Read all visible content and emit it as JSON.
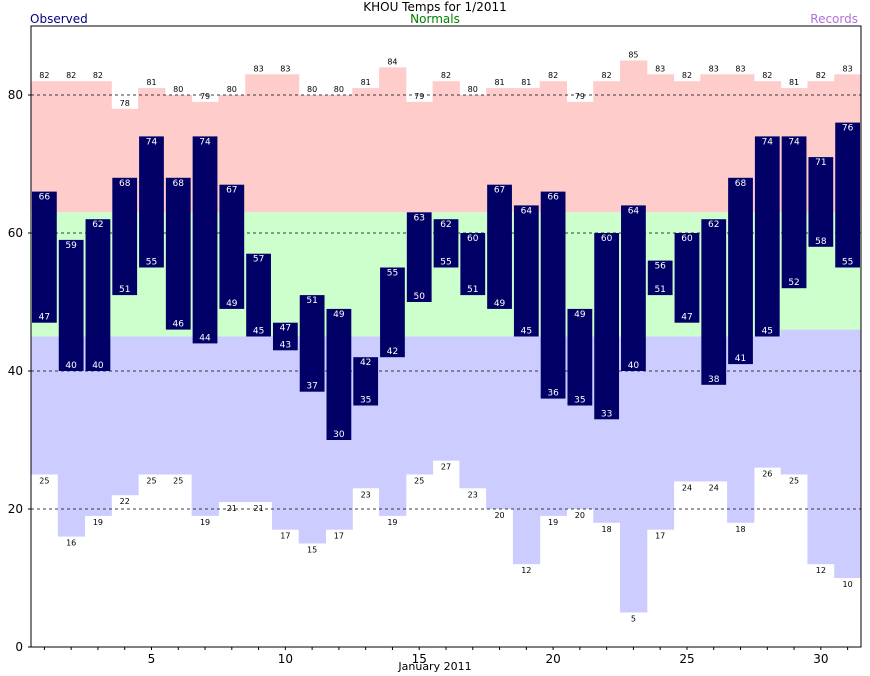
{
  "chart_data": {
    "type": "bar",
    "title": "KHOU Temps for 1/2011",
    "legend": {
      "observed": "Observed",
      "normals": "Normals",
      "records": "Records"
    },
    "xlabel": "January 2011",
    "ylim": [
      0,
      90
    ],
    "xlim": [
      0.5,
      31.5
    ],
    "yticks": [
      0,
      20,
      40,
      60,
      80
    ],
    "xticks": [
      5,
      10,
      15,
      20,
      25,
      30
    ],
    "gridlines": [
      20,
      40,
      60,
      80
    ],
    "colors": {
      "observed": "#000066",
      "normal": "#ccffcc",
      "record_high": "#ffcccc",
      "record_low": "#ccccff",
      "legend_observed": "#000080",
      "legend_normals": "#008000",
      "legend_records": "#b070d8"
    },
    "days": [
      1,
      2,
      3,
      4,
      5,
      6,
      7,
      8,
      9,
      10,
      11,
      12,
      13,
      14,
      15,
      16,
      17,
      18,
      19,
      20,
      21,
      22,
      23,
      24,
      25,
      26,
      27,
      28,
      29,
      30,
      31
    ],
    "observed_high": [
      66,
      59,
      62,
      68,
      74,
      68,
      74,
      67,
      57,
      47,
      51,
      49,
      42,
      55,
      63,
      62,
      60,
      67,
      64,
      66,
      49,
      60,
      64,
      56,
      60,
      62,
      68,
      74,
      74,
      71,
      76
    ],
    "observed_low": [
      47,
      40,
      40,
      51,
      55,
      46,
      44,
      49,
      45,
      43,
      37,
      30,
      35,
      42,
      50,
      55,
      51,
      49,
      45,
      36,
      35,
      33,
      40,
      51,
      47,
      38,
      41,
      45,
      52,
      58,
      55
    ],
    "normal_high": [
      63,
      63,
      63,
      63,
      63,
      63,
      63,
      63,
      63,
      63,
      63,
      63,
      63,
      63,
      63,
      63,
      63,
      63,
      63,
      63,
      63,
      63,
      63,
      63,
      63,
      63,
      63,
      63,
      63,
      63,
      63
    ],
    "normal_low": [
      45,
      45,
      45,
      45,
      45,
      45,
      45,
      45,
      45,
      45,
      45,
      45,
      45,
      45,
      45,
      45,
      45,
      45,
      45,
      45,
      45,
      45,
      45,
      45,
      45,
      45,
      45,
      45,
      46,
      46,
      46
    ],
    "record_high": [
      82,
      82,
      82,
      78,
      81,
      80,
      79,
      80,
      83,
      83,
      80,
      80,
      81,
      84,
      79,
      82,
      80,
      81,
      81,
      82,
      79,
      82,
      85,
      83,
      82,
      83,
      83,
      82,
      81,
      82,
      83
    ],
    "record_low": [
      25,
      16,
      19,
      22,
      25,
      25,
      19,
      21,
      21,
      17,
      15,
      17,
      23,
      19,
      25,
      27,
      23,
      20,
      12,
      19,
      20,
      18,
      5,
      17,
      24,
      24,
      18,
      26,
      25,
      12,
      10
    ]
  }
}
